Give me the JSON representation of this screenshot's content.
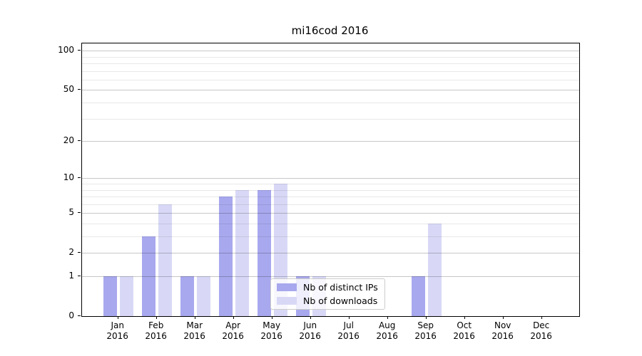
{
  "figure": {
    "title": "mi16cod 2016"
  },
  "chart_data": {
    "type": "bar",
    "title": "mi16cod 2016",
    "categories": [
      "Jan",
      "Feb",
      "Mar",
      "Apr",
      "May",
      "Jun",
      "Jul",
      "Aug",
      "Sep",
      "Oct",
      "Nov",
      "Dec"
    ],
    "category_year": "2016",
    "series": [
      {
        "name": "Nb of distinct IPs",
        "color": "#a8a8ee",
        "values": [
          1,
          3,
          1,
          7,
          8,
          1,
          0,
          0,
          1,
          0,
          0,
          0
        ]
      },
      {
        "name": "Nb of downloads",
        "color": "#d8d8f6",
        "values": [
          1,
          6,
          1,
          8,
          9,
          1,
          0,
          0,
          4,
          0,
          0,
          0
        ]
      }
    ],
    "xlabel": "",
    "ylabel": "",
    "y_scale": "log10(1+value)",
    "y_major_ticks": [
      100,
      50,
      20,
      10,
      5,
      2,
      1,
      0
    ],
    "y_minor_gridlines": [
      90,
      80,
      70,
      60,
      40,
      30,
      9,
      8,
      7,
      6,
      4,
      3
    ],
    "ylim": [
      0,
      113
    ],
    "grid": "major+minor horizontal, gray, drawn above bars",
    "legend_position": "lower center inside plot"
  }
}
